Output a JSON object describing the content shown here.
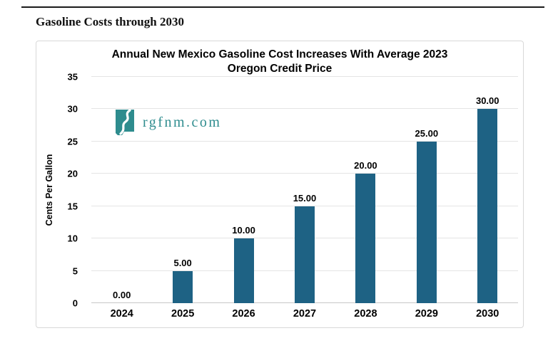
{
  "page": {
    "heading": "Gasoline Costs through 2030"
  },
  "watermark": {
    "text": "rgfnm.com",
    "icon": "new-mexico-river-icon",
    "color": "#2e8c8e"
  },
  "colors": {
    "bar": "#1e6284",
    "teal": "#2e8c8e",
    "panel_border": "#d8d8d8",
    "gridline": "#e4e4e4",
    "axis_line": "#c6c6c6"
  },
  "chart_data": {
    "type": "bar",
    "title": "Annual New Mexico Gasoline Cost Increases With Average 2023 Oregon Credit Price",
    "title_lines": [
      "Annual New Mexico Gasoline Cost Increases With Average 2023",
      "Oregon Credit Price"
    ],
    "categories": [
      "2024",
      "2025",
      "2026",
      "2027",
      "2028",
      "2029",
      "2030"
    ],
    "values": [
      0,
      5,
      10,
      15,
      20,
      25,
      30
    ],
    "bar_labels": [
      "0.00",
      "5.00",
      "10.00",
      "15.00",
      "20.00",
      "25.00",
      "30.00"
    ],
    "xlabel": "",
    "ylabel": "Cents Per Gallon",
    "ylim": [
      0,
      35
    ],
    "yticks": [
      0,
      5,
      10,
      15,
      20,
      25,
      30,
      35
    ],
    "grid": true,
    "legend_position": "none",
    "bar_color": "#1e6284",
    "grid_color": "#e4e4e4",
    "axis_color": "#c6c6c6"
  }
}
